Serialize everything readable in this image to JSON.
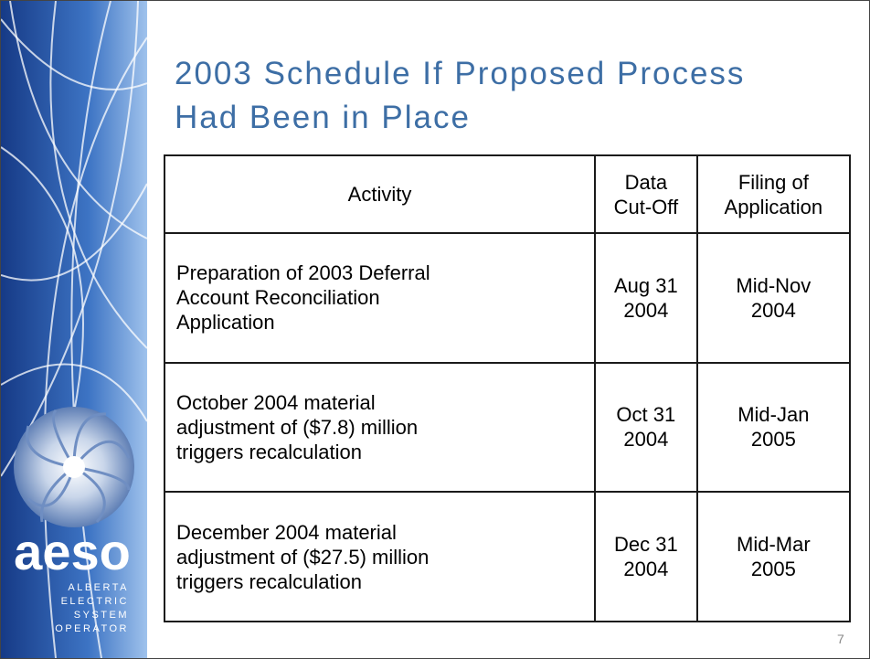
{
  "header": {
    "title": [
      "2003 Schedule If Proposed Process",
      "Had Been in Place"
    ]
  },
  "table": {
    "header": [
      [
        "Activity"
      ],
      [
        "Data",
        "Cut-Off"
      ],
      [
        "Filing of",
        "Application"
      ]
    ],
    "rows": [
      [
        [
          "Preparation of 2003 Deferral",
          "Account Reconciliation",
          "Application"
        ],
        [
          "Aug 31",
          "2004"
        ],
        [
          "Mid-Nov",
          "2004"
        ]
      ],
      [
        [
          "October 2004 material",
          "adjustment of ($7.8) million",
          "triggers recalculation"
        ],
        [
          "Oct 31",
          "2004"
        ],
        [
          "Mid-Jan",
          "2005"
        ]
      ],
      [
        [
          "December 2004 material",
          "adjustment of ($27.5) million",
          "triggers recalculation"
        ],
        [
          "Dec 31",
          "2004"
        ],
        [
          "Mid-Mar",
          "2005"
        ]
      ]
    ]
  },
  "logo": {
    "name": "aeso",
    "lines": [
      "ALBERTA",
      "ELECTRIC",
      "SYSTEM",
      "OPERATOR"
    ]
  },
  "footer": {
    "page": "7"
  }
}
